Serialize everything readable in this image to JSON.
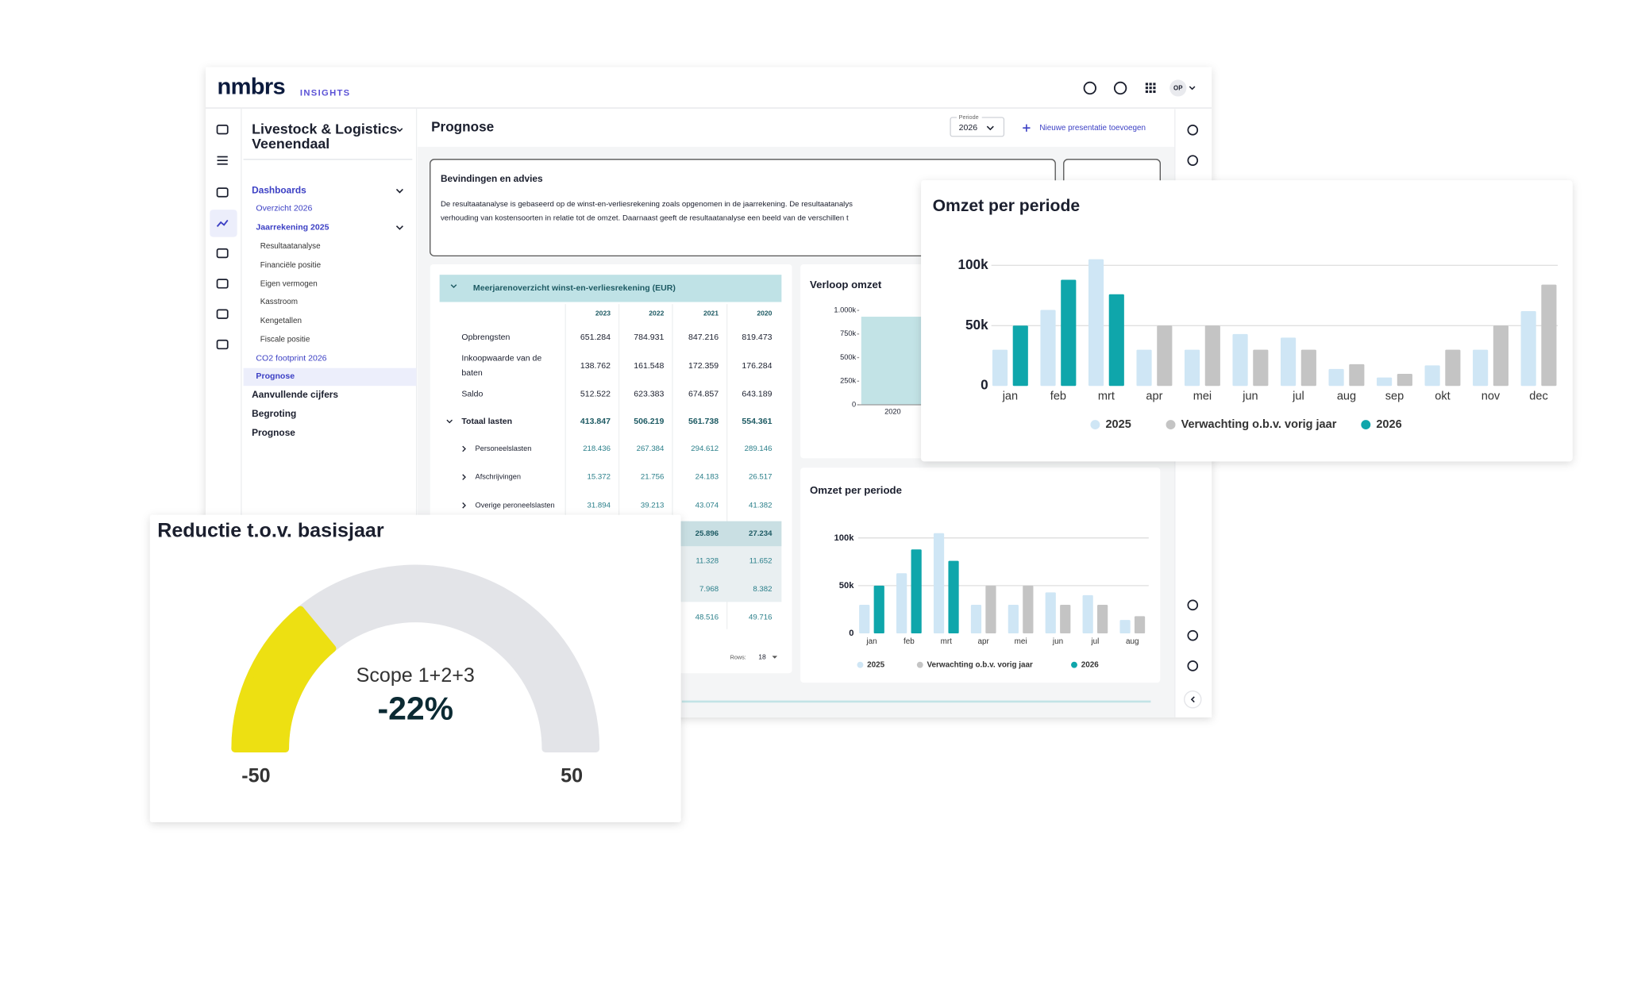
{
  "header": {
    "logo": "nmbrs",
    "product": "INSIGHTS",
    "user": "OP"
  },
  "sidebar": {
    "title_line1": "Livestock & Logistics",
    "title_line2": "Veenendaal",
    "nav": [
      "Dashboards",
      "Overzicht 2026",
      "Jaarrekening 2025",
      "Resultaatanalyse",
      "Financiële positie",
      "Eigen vermogen",
      "Kasstroom",
      "Kengetallen",
      "Fiscale positie",
      "CO2 footprint 2026",
      "Prognose",
      "Aanvullende cijfers",
      "Begroting",
      "Prognose"
    ]
  },
  "page": {
    "title": "Prognose",
    "period_label": "Periode",
    "period_value": "2026",
    "add_button": "Nieuwe presentatie toevoegen"
  },
  "findings": {
    "title": "Bevindingen en advies",
    "lines": [
      "De resultaatanalyse is gebaseerd op de winst-en-verliesrekening zoals opgenomen in de jaarrekening. De resultaatanalys",
      "verhouding van kostensoorten in relatie tot de omzet. Daarnaast geeft de resultaatanalyse een beeld van de verschillen t"
    ]
  },
  "table": {
    "title": "Meerjarenoverzicht winst-en-verliesrekening (EUR)",
    "columns": [
      "2023",
      "2022",
      "2021",
      "2020"
    ],
    "rows": [
      {
        "label": "Opbrengsten",
        "values": [
          "651.284",
          "784.931",
          "847.216",
          "819.473"
        ]
      },
      {
        "label": "Inkoopwaarde van de",
        "label2": "baten",
        "values": [
          "138.762",
          "161.548",
          "172.359",
          "176.284"
        ]
      },
      {
        "label": "Saldo",
        "values": [
          "512.522",
          "623.383",
          "674.857",
          "643.189"
        ]
      },
      {
        "label": "Totaal lasten",
        "values": [
          "413.847",
          "506.219",
          "561.738",
          "554.361"
        ]
      },
      {
        "label": "Personeelslasten",
        "values": [
          "218.436",
          "267.384",
          "294.612",
          "289.146"
        ]
      },
      {
        "label": "Afschrijvingen",
        "values": [
          "15.372",
          "21.756",
          "24.183",
          "26.517"
        ]
      },
      {
        "label": "Overige peroneelslasten",
        "values": [
          "31.894",
          "39.213",
          "43.074",
          "41.382"
        ]
      }
    ],
    "partial_rows": [
      [
        "25.896",
        "27.234"
      ],
      [
        "11.328",
        "11.652"
      ],
      [
        "7.968",
        "8.382"
      ],
      [
        "48.516",
        "49.716"
      ]
    ],
    "rows_label": "Rows:",
    "rows_value": "18"
  },
  "verloop_chart": {
    "type": "bar",
    "title": "Verloop omzet",
    "categories": [
      "2020"
    ],
    "values": [
      933
    ],
    "color": "#c2e3e6",
    "ylim": [
      0,
      1000
    ],
    "yticks": [
      0,
      {
        "value": 250,
        "label": "250k"
      },
      {
        "value": 500,
        "label": "500k"
      },
      {
        "value": 750,
        "label": "750k"
      },
      {
        "value": 1000,
        "label": "1.000k"
      }
    ]
  },
  "omzet_chart_small": {
    "type": "bar",
    "title": "Omzet per periode",
    "categories": [
      "jan",
      "feb",
      "mrt",
      "apr",
      "mei",
      "jun",
      "jul",
      "aug"
    ],
    "series": [
      {
        "name": "2025",
        "color": "#cfe6f5",
        "values": [
          30000,
          63000,
          105000,
          30000,
          30000,
          43000,
          40000,
          14000
        ]
      },
      {
        "name": "Verwachting o.b.v. vorig jaar",
        "color": "#c4c4c4",
        "values": [
          null,
          null,
          null,
          50000,
          50000,
          30000,
          30000,
          18000
        ]
      },
      {
        "name": "2026",
        "color": "#0fa6ab",
        "values": [
          50000,
          88000,
          76000,
          null,
          null,
          null,
          null,
          null
        ]
      }
    ],
    "ylim": [
      0,
      110000
    ],
    "yticks": [
      0,
      {
        "value": 50000,
        "label": "50k"
      },
      {
        "value": 100000,
        "label": "100k"
      }
    ],
    "grid": true
  },
  "omzet_chart": {
    "type": "bar",
    "title": "Omzet per periode",
    "categories": [
      "jan",
      "feb",
      "mrt",
      "apr",
      "mei",
      "jun",
      "jul",
      "aug",
      "sep",
      "okt",
      "nov",
      "dec"
    ],
    "series": [
      {
        "name": "2025",
        "color": "#cfe6f5",
        "values": [
          30000,
          63000,
          105000,
          30000,
          30000,
          43000,
          40000,
          14000,
          7000,
          17000,
          30000,
          62000
        ]
      },
      {
        "name": "Verwachting o.b.v. vorig jaar",
        "color": "#c4c4c4",
        "values": [
          null,
          null,
          null,
          50000,
          50000,
          30000,
          30000,
          18000,
          10000,
          30000,
          50000,
          84000
        ]
      },
      {
        "name": "2026",
        "color": "#0fa6ab",
        "values": [
          50000,
          88000,
          76000,
          null,
          null,
          null,
          null,
          null,
          null,
          null,
          null,
          null
        ]
      }
    ],
    "ylim": [
      0,
      110000
    ],
    "yticks": [
      0,
      {
        "value": 50000,
        "label": "50k"
      },
      {
        "value": 100000,
        "label": "100k"
      }
    ],
    "grid": true
  },
  "gauge": {
    "type": "gauge",
    "title": "Reductie t.o.v. basisjaar",
    "label": "Scope 1+2+3",
    "value": -22,
    "value_label": "-22%",
    "min": -50,
    "max": 50,
    "color": "#ede012",
    "track_color": "#e3e4e8"
  }
}
